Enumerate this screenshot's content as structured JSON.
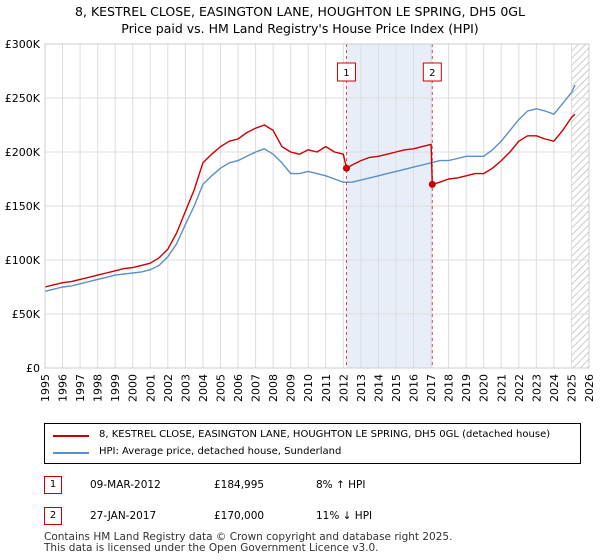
{
  "title_line1": "8, KESTREL CLOSE, EASINGTON LANE, HOUGHTON LE SPRING, DH5 0GL",
  "title_line2": "Price paid vs. HM Land Registry's House Price Index (HPI)",
  "colors": {
    "property": "#cc0000",
    "hpi": "#5b8fc9",
    "shade": "#e8eef8",
    "grid": "#dddddd"
  },
  "legend": {
    "property_label": "8, KESTREL CLOSE, EASINGTON LANE, HOUGHTON LE SPRING, DH5 0GL (detached house)",
    "hpi_label": "HPI: Average price, detached house, Sunderland"
  },
  "sales": [
    {
      "id": "1",
      "date": "09-MAR-2012",
      "price": "£184,995",
      "hpi": "8% ↑ HPI"
    },
    {
      "id": "2",
      "date": "27-JAN-2017",
      "price": "£170,000",
      "hpi": "11% ↓ HPI"
    }
  ],
  "footer": {
    "line1": "Contains HM Land Registry data © Crown copyright and database right 2025.",
    "line2": "This data is licensed under the Open Government Licence v3.0."
  },
  "chart_data": {
    "type": "line",
    "title": "Price paid vs. HM Land Registry's House Price Index (HPI)",
    "xlim": [
      1995,
      2026
    ],
    "ylim": [
      0,
      300000
    ],
    "y_ticks": [
      0,
      50000,
      100000,
      150000,
      200000,
      250000,
      300000
    ],
    "y_tick_labels": [
      "£0",
      "£50K",
      "£100K",
      "£150K",
      "£200K",
      "£250K",
      "£300K"
    ],
    "x_ticks": [
      1995,
      1996,
      1997,
      1998,
      1999,
      2000,
      2001,
      2002,
      2003,
      2004,
      2005,
      2006,
      2007,
      2008,
      2009,
      2010,
      2011,
      2012,
      2013,
      2014,
      2015,
      2016,
      2017,
      2018,
      2019,
      2020,
      2021,
      2022,
      2023,
      2024,
      2025,
      2026
    ],
    "shaded_period": [
      2012.18,
      2017.07
    ],
    "hatched_after": 2025.0,
    "markers": [
      {
        "label": "1",
        "x": 2012.18,
        "y": 184995
      },
      {
        "label": "2",
        "x": 2017.07,
        "y": 170000
      }
    ],
    "series": [
      {
        "name": "8, KESTREL CLOSE, EASINGTON LANE, HOUGHTON LE SPRING, DH5 0GL (detached house)",
        "color": "#cc0000",
        "x": [
          1995.0,
          1995.5,
          1996.0,
          1996.5,
          1997.0,
          1997.5,
          1998.0,
          1998.5,
          1999.0,
          1999.5,
          2000.0,
          2000.5,
          2001.0,
          2001.5,
          2002.0,
          2002.5,
          2003.0,
          2003.5,
          2004.0,
          2004.5,
          2005.0,
          2005.5,
          2006.0,
          2006.5,
          2007.0,
          2007.5,
          2008.0,
          2008.5,
          2009.0,
          2009.5,
          2010.0,
          2010.5,
          2011.0,
          2011.5,
          2012.0,
          2012.18,
          2012.5,
          2013.0,
          2013.5,
          2014.0,
          2014.5,
          2015.0,
          2015.5,
          2016.0,
          2016.5,
          2017.0,
          2017.07,
          2017.5,
          2018.0,
          2018.5,
          2019.0,
          2019.5,
          2020.0,
          2020.5,
          2021.0,
          2021.5,
          2022.0,
          2022.5,
          2023.0,
          2023.5,
          2024.0,
          2024.5,
          2025.0,
          2025.2
        ],
        "values": [
          75000,
          77000,
          79000,
          80000,
          82000,
          84000,
          86000,
          88000,
          90000,
          92000,
          93000,
          95000,
          97000,
          102000,
          110000,
          125000,
          145000,
          165000,
          190000,
          198000,
          205000,
          210000,
          212000,
          218000,
          222000,
          225000,
          220000,
          205000,
          200000,
          198000,
          202000,
          200000,
          205000,
          200000,
          198000,
          184995,
          188000,
          192000,
          195000,
          196000,
          198000,
          200000,
          202000,
          203000,
          205000,
          207000,
          170000,
          172000,
          175000,
          176000,
          178000,
          180000,
          180000,
          185000,
          192000,
          200000,
          210000,
          215000,
          215000,
          212000,
          210000,
          220000,
          232000,
          235000
        ]
      },
      {
        "name": "HPI: Average price, detached house, Sunderland",
        "color": "#5b8fc9",
        "x": [
          1995.0,
          1995.5,
          1996.0,
          1996.5,
          1997.0,
          1997.5,
          1998.0,
          1998.5,
          1999.0,
          1999.5,
          2000.0,
          2000.5,
          2001.0,
          2001.5,
          2002.0,
          2002.5,
          2003.0,
          2003.5,
          2004.0,
          2004.5,
          2005.0,
          2005.5,
          2006.0,
          2006.5,
          2007.0,
          2007.5,
          2008.0,
          2008.5,
          2009.0,
          2009.5,
          2010.0,
          2010.5,
          2011.0,
          2011.5,
          2012.0,
          2012.5,
          2013.0,
          2013.5,
          2014.0,
          2014.5,
          2015.0,
          2015.5,
          2016.0,
          2016.5,
          2017.0,
          2017.5,
          2018.0,
          2018.5,
          2019.0,
          2019.5,
          2020.0,
          2020.5,
          2021.0,
          2021.5,
          2022.0,
          2022.5,
          2023.0,
          2023.5,
          2024.0,
          2024.5,
          2025.0,
          2025.2
        ],
        "values": [
          71000,
          73000,
          75000,
          76000,
          78000,
          80000,
          82000,
          84000,
          86000,
          87000,
          88000,
          89000,
          91000,
          95000,
          103000,
          115000,
          133000,
          150000,
          170000,
          178000,
          185000,
          190000,
          192000,
          196000,
          200000,
          203000,
          198000,
          190000,
          180000,
          180000,
          182000,
          180000,
          178000,
          175000,
          172000,
          172000,
          174000,
          176000,
          178000,
          180000,
          182000,
          184000,
          186000,
          188000,
          190000,
          192000,
          192000,
          194000,
          196000,
          196000,
          196000,
          202000,
          210000,
          220000,
          230000,
          238000,
          240000,
          238000,
          235000,
          245000,
          255000,
          262000
        ]
      }
    ]
  }
}
